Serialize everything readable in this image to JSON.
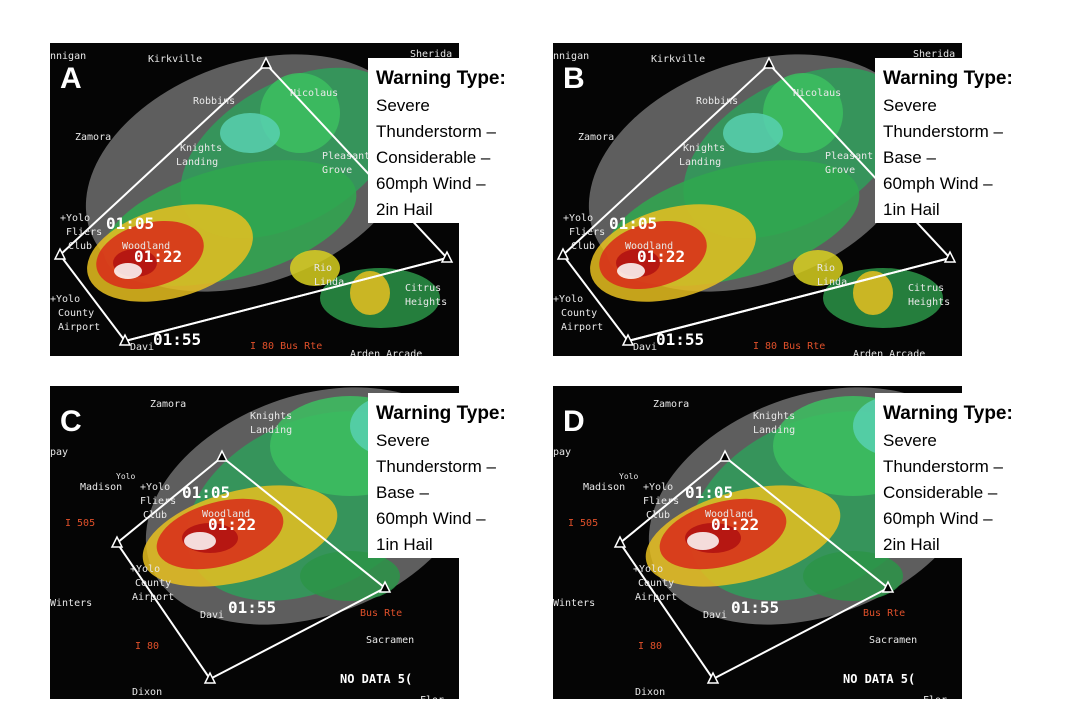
{
  "panels": [
    {
      "letter": "A",
      "heading": "Warning Type:",
      "lines": [
        "Severe",
        "Thunderstorm –",
        "Considerable –",
        "60mph Wind –",
        "2in Hail"
      ],
      "map_labels": [
        "nnigan",
        "Kirkville",
        "Sherida",
        "Robbins",
        "Nicolaus",
        "Zamora",
        "Knights",
        "Landing",
        "Pleasant",
        "Grove",
        "+Yolo",
        "Fliers",
        "Club",
        "01:05",
        "Woodland",
        "01:22",
        "Rio",
        "Linda",
        "Citrus",
        "Heights",
        "+Yolo",
        "County",
        "Airport",
        "Davi",
        "01:55",
        "I 80 Bus Rte",
        "Arden Arcade"
      ]
    },
    {
      "letter": "B",
      "heading": "Warning Type:",
      "lines": [
        "Severe",
        "Thunderstorm –",
        "Base –",
        "60mph Wind –",
        "1in Hail"
      ],
      "map_labels": [
        "nnigan",
        "Kirkville",
        "Sherida",
        "Robbins",
        "Nicolaus",
        "Zamora",
        "Knights",
        "Landing",
        "Pleasant",
        "Grove",
        "+Yolo",
        "Fliers",
        "Club",
        "01:05",
        "Woodland",
        "01:22",
        "Rio",
        "Linda",
        "Citrus",
        "Heights",
        "+Yolo",
        "County",
        "Airport",
        "Davi",
        "01:55",
        "I 80 Bus Rte",
        "Arden Arcade"
      ]
    },
    {
      "letter": "C",
      "heading": "Warning Type:",
      "lines": [
        "Severe",
        "Thunderstorm –",
        "Base –",
        "60mph Wind –",
        "1in Hail"
      ],
      "map_labels": [
        "Zamora",
        "Knights",
        "Landing",
        "pay",
        "Yolo",
        "Madison",
        "+Yolo",
        "Fliers",
        "Club",
        "01:05",
        "Woodland",
        "01:22",
        "I 505",
        "+Yolo",
        "County",
        "Airport",
        "Winters",
        "Davi",
        "01:55",
        "Bus Rte",
        "Sacramen",
        "I 80",
        "Dixon",
        "NO DATA 5(",
        "Flor"
      ]
    },
    {
      "letter": "D",
      "heading": "Warning Type:",
      "lines": [
        "Severe",
        "Thunderstorm –",
        "Considerable –",
        "60mph Wind –",
        "2in Hail"
      ],
      "map_labels": [
        "Zamora",
        "Knights",
        "Landing",
        "pay",
        "Yolo",
        "Madison",
        "+Yolo",
        "Fliers",
        "Club",
        "01:05",
        "Woodland",
        "01:22",
        "I 505",
        "+Yolo",
        "County",
        "Airport",
        "Winters",
        "Davi",
        "01:55",
        "Bus Rte",
        "Sacramen",
        "I 80",
        "Dixon",
        "NO DATA 5(",
        "Flor"
      ]
    }
  ]
}
